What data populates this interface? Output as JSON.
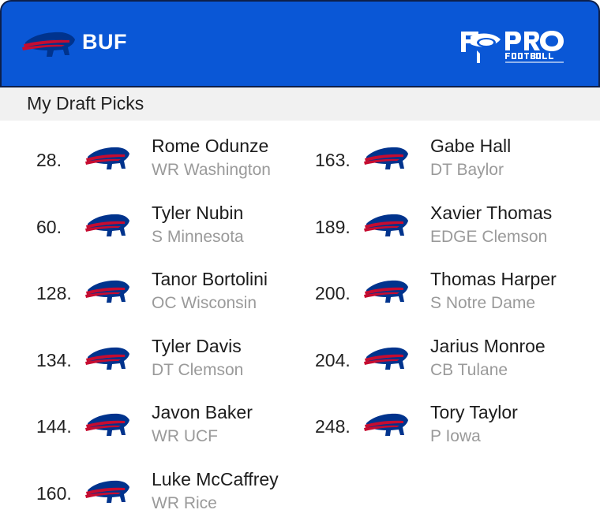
{
  "header": {
    "team": "BUF",
    "brand_logo": "PRO FOOTBALL NETWORK",
    "background": "#0a57d6"
  },
  "section_title": "My Draft Picks",
  "picks": [
    {
      "number": "28.",
      "name": "Rome Odunze",
      "meta": "WR Washington"
    },
    {
      "number": "60.",
      "name": "Tyler Nubin",
      "meta": "S Minnesota"
    },
    {
      "number": "128.",
      "name": "Tanor Bortolini",
      "meta": "OC Wisconsin"
    },
    {
      "number": "134.",
      "name": "Tyler Davis",
      "meta": "DT Clemson"
    },
    {
      "number": "144.",
      "name": "Javon Baker",
      "meta": "WR UCF"
    },
    {
      "number": "160.",
      "name": "Luke McCaffrey",
      "meta": "WR Rice"
    },
    {
      "number": "163.",
      "name": "Gabe Hall",
      "meta": "DT Baylor"
    },
    {
      "number": "189.",
      "name": "Xavier Thomas",
      "meta": "EDGE Clemson"
    },
    {
      "number": "200.",
      "name": "Thomas Harper",
      "meta": "S Notre Dame"
    },
    {
      "number": "204.",
      "name": "Jarius Monroe",
      "meta": "CB Tulane"
    },
    {
      "number": "248.",
      "name": "Tory Taylor",
      "meta": "P Iowa"
    }
  ],
  "colors": {
    "bills_blue": "#00338d",
    "bills_red": "#c60c30"
  },
  "icons": {
    "team_logo": "buffalo-bills-icon"
  }
}
